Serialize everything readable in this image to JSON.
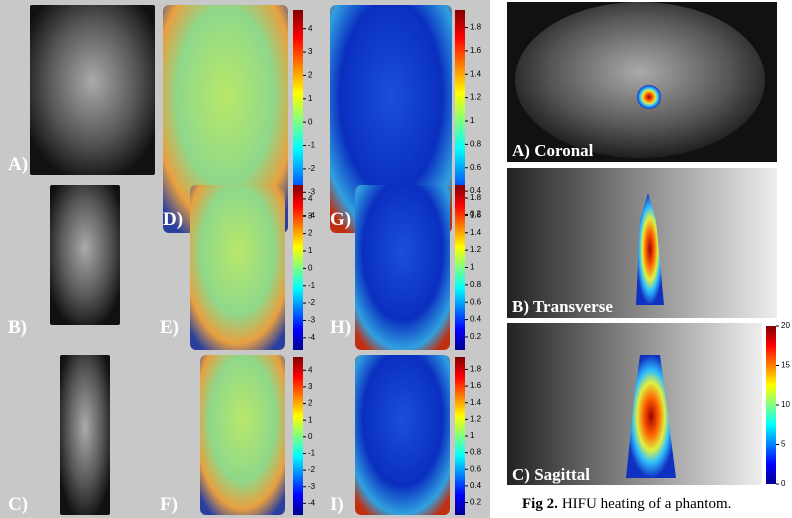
{
  "left_figure": {
    "panels": [
      {
        "label": "A)"
      },
      {
        "label": "D)"
      },
      {
        "label": "G)"
      },
      {
        "label": "B)"
      },
      {
        "label": "E)"
      },
      {
        "label": "H)"
      },
      {
        "label": "C)"
      },
      {
        "label": "F)"
      },
      {
        "label": "I)"
      }
    ],
    "colorbars": [
      {
        "lim": [
          -4.7,
          4.8
        ],
        "ticks": [
          4,
          3,
          2,
          1,
          0,
          -1,
          -2,
          -3,
          -4
        ]
      },
      {
        "lim": [
          0.05,
          1.95
        ],
        "ticks": [
          1.8,
          1.6,
          1.4,
          1.2,
          1,
          0.8,
          0.6,
          0.4,
          0.2
        ]
      },
      {
        "lim": [
          -4.7,
          4.8
        ],
        "ticks": [
          4,
          3,
          2,
          1,
          0,
          -1,
          -2,
          -3,
          -4
        ]
      },
      {
        "lim": [
          0.05,
          1.95
        ],
        "ticks": [
          1.8,
          1.6,
          1.4,
          1.2,
          1,
          0.8,
          0.6,
          0.4,
          0.2
        ]
      },
      {
        "lim": [
          -4.7,
          4.8
        ],
        "ticks": [
          4,
          3,
          2,
          1,
          0,
          -1,
          -2,
          -3,
          -4
        ]
      },
      {
        "lim": [
          0.05,
          1.95
        ],
        "ticks": [
          1.8,
          1.6,
          1.4,
          1.2,
          1,
          0.8,
          0.6,
          0.4,
          0.2
        ]
      }
    ]
  },
  "right_figure": {
    "panels": [
      {
        "label": "A) Coronal"
      },
      {
        "label": "B) Transverse"
      },
      {
        "label": "C) Sagittal"
      }
    ],
    "colorbar": {
      "lim": [
        0,
        20
      ],
      "ticks": [
        20,
        15,
        10,
        5,
        0
      ]
    },
    "caption": {
      "label": "Fig 2.",
      "text": "HIFU heating of a phantom."
    }
  }
}
